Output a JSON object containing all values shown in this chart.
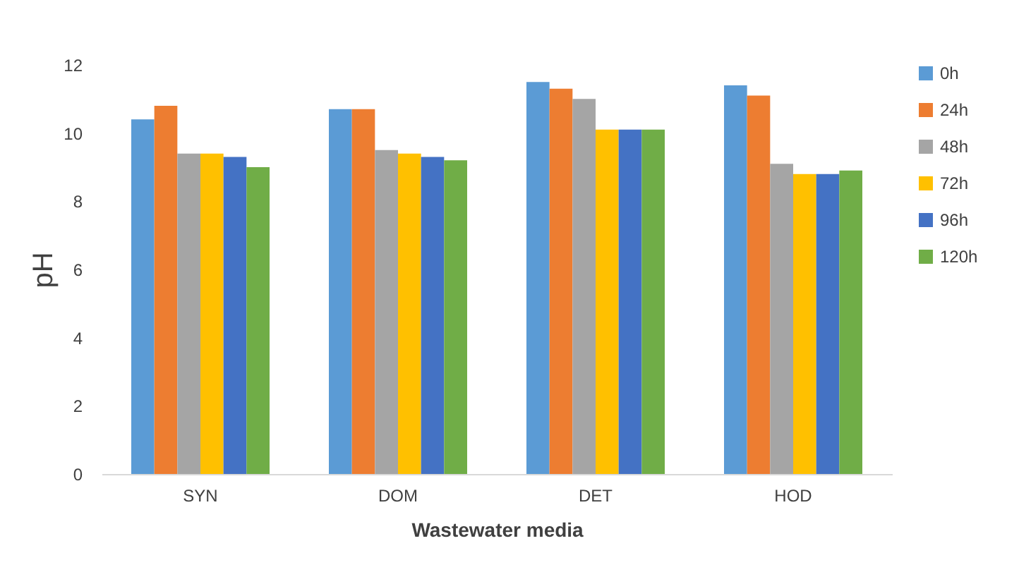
{
  "chart_data": {
    "type": "bar",
    "xlabel": "Wastewater media",
    "ylabel": "pH",
    "categories": [
      "SYN",
      "DOM",
      "DET",
      "HOD"
    ],
    "series": [
      {
        "name": "0h",
        "color": "#5b9bd5",
        "values": [
          10.4,
          10.7,
          11.5,
          11.4
        ]
      },
      {
        "name": "24h",
        "color": "#ed7d31",
        "values": [
          10.8,
          10.7,
          11.3,
          11.1
        ]
      },
      {
        "name": "48h",
        "color": "#a5a5a5",
        "values": [
          9.4,
          9.5,
          11.0,
          9.1
        ]
      },
      {
        "name": "72h",
        "color": "#ffc000",
        "values": [
          9.4,
          9.4,
          10.1,
          8.8
        ]
      },
      {
        "name": "96h",
        "color": "#4472c4",
        "values": [
          9.3,
          9.3,
          10.1,
          8.8
        ]
      },
      {
        "name": "120h",
        "color": "#70ad47",
        "values": [
          9.0,
          9.2,
          10.1,
          8.9
        ]
      }
    ],
    "ylim": [
      0,
      12
    ],
    "yticks": [
      0,
      2,
      4,
      6,
      8,
      10,
      12
    ],
    "grid": false,
    "legend": "right"
  }
}
